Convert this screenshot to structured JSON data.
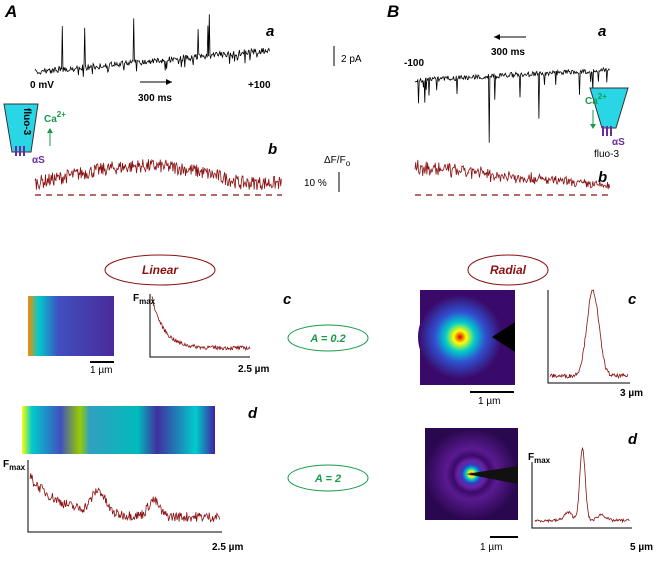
{
  "panel_A": {
    "label": "A",
    "trace_a": "a",
    "trace_b": "b",
    "current_scale": "2 pA",
    "voltage_start": "0 mV",
    "voltage_end": "+100",
    "time_scale": "300 ms",
    "dye": "fluo-3",
    "ion": "Ca",
    "ion_charge": "2+",
    "antibody": "αS",
    "fluorescence": {
      "main": "ΔF/F",
      "sub": "o"
    },
    "fluorescence_scale": "10 %"
  },
  "panel_B": {
    "label": "B",
    "trace_a": "a",
    "trace_b": "b",
    "voltage_start": "-100",
    "time_scale": "300 ms",
    "dye": "fluo-3",
    "ion": "Ca",
    "ion_charge": "2+",
    "antibody": "αS"
  },
  "linear": {
    "title": "Linear",
    "c": {
      "label": "c",
      "fmax": {
        "main": "F",
        "sub": "max"
      },
      "scale": "1 µm",
      "axis_end": "2.5 µm"
    },
    "d": {
      "label": "d",
      "fmax": {
        "main": "F",
        "sub": "max"
      },
      "axis_end": "2.5 µm"
    }
  },
  "radial": {
    "title": "Radial",
    "c": {
      "label": "c",
      "scale": "1 µm",
      "axis_end": "3 µm"
    },
    "d": {
      "label": "d",
      "fmax": {
        "main": "F",
        "sub": "max"
      },
      "scale": "1 µm",
      "axis_end": "5 µm"
    }
  },
  "anisotropy": [
    "A = 0.2",
    "A = 2"
  ]
}
